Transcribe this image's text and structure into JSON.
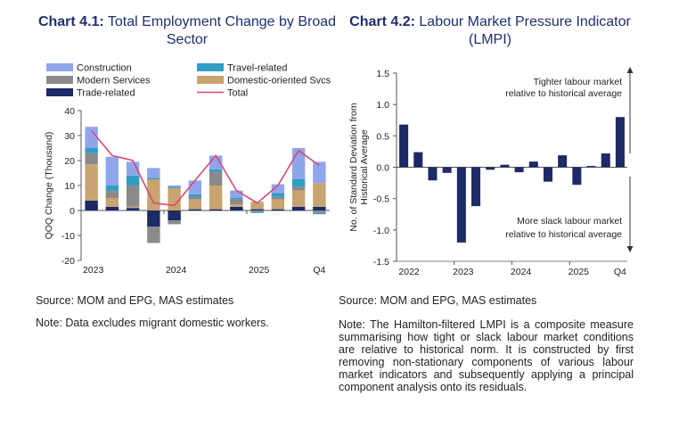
{
  "chart1": {
    "title_bold": "Chart 4.1:",
    "title_rest": " Total Employment Change by Broad Sector",
    "source": "Source: MOM and EPG, MAS estimates",
    "note": "Note: Data excludes migrant domestic workers.",
    "colors": {
      "construction": "#8fa6ec",
      "travel": "#2e9ec4",
      "modern": "#8a8a8a",
      "domestic": "#c8a470",
      "trade": "#1c2a66",
      "total": "#d64a72"
    }
  },
  "chart2": {
    "title_bold": "Chart 4.2:",
    "title_rest": " Labour Market Pressure Indicator (LMPI)",
    "source": "Source: MOM and EPG, MAS estimates",
    "note": "Note: The Hamilton-filtered LMPI is a composite measure summarising how tight or slack labour market conditions are relative to historical norm. It is constructed by first removing non-stationary components of various labour market indicators and subsequently applying a principal component analysis onto its residuals.",
    "annot_top": [
      "Tighter labour market",
      "relative to historical average"
    ],
    "annot_bottom": [
      "More slack labour market",
      "relative to historical average"
    ],
    "bar_color": "#1c2a66"
  },
  "chart_data": [
    {
      "type": "bar",
      "stacked": true,
      "title": "Chart 4.1: Total Employment Change by Broad Sector",
      "ylabel": "QOQ Change (Thousand)",
      "ylim": [
        -20,
        40
      ],
      "yticks": [
        -20,
        -10,
        0,
        10,
        20,
        30,
        40
      ],
      "x_tick_labels": [
        "2023",
        "2024",
        "2025",
        "Q4"
      ],
      "categories": [
        "2023Q1",
        "2023Q2",
        "2023Q3",
        "2023Q4",
        "2024Q1",
        "2024Q2",
        "2024Q3",
        "2024Q4",
        "2025Q1",
        "2025Q2",
        "2025Q3",
        "2025Q4"
      ],
      "legend": [
        "Construction",
        "Travel-related",
        "Modern Services",
        "Domestic-oriented Svcs",
        "Trade-related",
        "Total"
      ],
      "series": [
        {
          "name": "Trade-related",
          "key": "trade",
          "values": [
            4,
            1.5,
            1,
            -6.5,
            -4,
            0.5,
            0.5,
            1.5,
            0.5,
            0.5,
            1.5,
            1.5
          ]
        },
        {
          "name": "Domestic-oriented Svcs",
          "key": "domestic",
          "values": [
            14.5,
            3.5,
            0.5,
            12.5,
            9,
            4,
            9.5,
            1,
            3,
            4,
            6.5,
            9.5
          ]
        },
        {
          "name": "Modern Services",
          "key": "modern",
          "values": [
            4.5,
            3,
            8.5,
            -6.5,
            -1.5,
            1,
            5.5,
            2,
            -0.5,
            1,
            1.5,
            -1
          ]
        },
        {
          "name": "Travel-related",
          "key": "travel",
          "values": [
            2,
            2,
            4,
            0.5,
            0.5,
            1,
            1,
            0.5,
            -0.5,
            1.5,
            3,
            -0.5
          ]
        },
        {
          "name": "Construction",
          "key": "construction",
          "values": [
            8.5,
            11.5,
            5.5,
            4,
            0.5,
            5.5,
            5.5,
            3,
            0,
            3.5,
            12.5,
            8.5
          ]
        }
      ],
      "total": {
        "name": "Total",
        "values": [
          32,
          22,
          20,
          3,
          2,
          12,
          22,
          8,
          3,
          10,
          24,
          18
        ]
      }
    },
    {
      "type": "bar",
      "title": "Chart 4.2: Labour Market Pressure Indicator (LMPI)",
      "ylabel": "No. of Standard Deviation from Historical Average",
      "ylim": [
        -1.5,
        1.5
      ],
      "yticks": [
        -1.5,
        -1.0,
        -0.5,
        0.0,
        0.5,
        1.0,
        1.5
      ],
      "ytick_labels": [
        "-1.5",
        "-1.0",
        "-0.5",
        "0.0",
        "0.5",
        "1.0",
        "1.5"
      ],
      "x_tick_labels": [
        "2022",
        "2023",
        "2024",
        "2025",
        "Q4"
      ],
      "categories": [
        "2022Q1",
        "2022Q2",
        "2022Q3",
        "2022Q4",
        "2023Q1",
        "2023Q2",
        "2023Q3",
        "2023Q4",
        "2024Q1",
        "2024Q2",
        "2024Q3",
        "2024Q4",
        "2025Q1",
        "2025Q2",
        "2025Q3",
        "2025Q4"
      ],
      "values": [
        0.68,
        0.24,
        -0.21,
        -0.09,
        -1.2,
        -0.62,
        -0.04,
        0.04,
        -0.08,
        0.09,
        -0.23,
        0.19,
        -0.28,
        0.02,
        0.22,
        0.8
      ]
    }
  ]
}
